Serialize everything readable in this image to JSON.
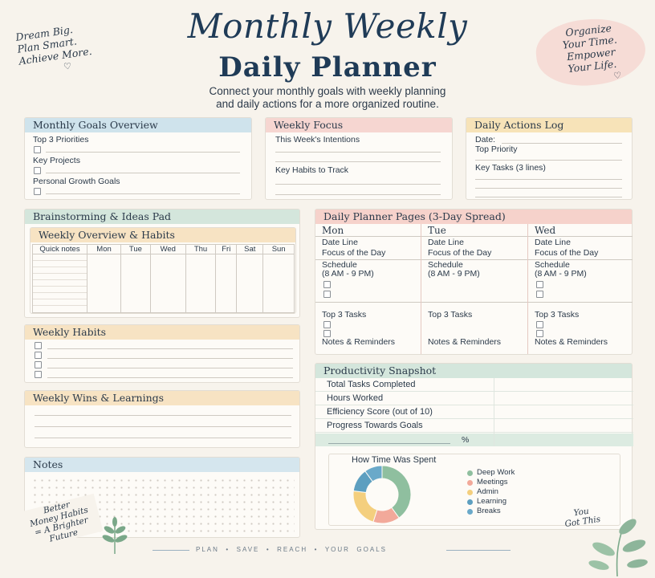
{
  "header": {
    "title_line1": "Monthly Weekly",
    "title_line2": "Daily Planner",
    "subtitle_line1": "Connect your monthly goals with weekly planning",
    "subtitle_line2": "and daily actions for a more organized routine."
  },
  "corner_left": {
    "line1": "Dream Big.",
    "line2": "Plan Smart.",
    "line3": "Achieve More."
  },
  "corner_right": {
    "line1": "Organize",
    "line2": "Your Time.",
    "line3": "Empower",
    "line4": "Your Life."
  },
  "monthly_goals": {
    "title": "Monthly Goals Overview",
    "top3": "Top 3 Priorities",
    "key_projects": "Key Projects",
    "personal_growth": "Personal Growth Goals",
    "color": "#cfe3ec"
  },
  "weekly_focus": {
    "title": "Weekly Focus",
    "intentions": "This Week's Intentions",
    "key_habits": "Key Habits to Track",
    "color": "#f6d6d1"
  },
  "daily_log": {
    "title": "Daily Actions Log",
    "date": "Date:",
    "top_priority": "Top Priority",
    "key_tasks": "Key Tasks (3 lines)",
    "color": "#f7e3b8"
  },
  "brainstorm": {
    "title": "Brainstorming & Ideas Pad",
    "color": "#d4e6dc"
  },
  "weekly_overview": {
    "title": "Weekly Overview & Habits",
    "quick_notes": "Quick notes",
    "days": [
      "Mon",
      "Tue",
      "Wed",
      "Thu",
      "Fri",
      "Sat",
      "Sun"
    ],
    "color": "#f7e3c3"
  },
  "weekly_habits": {
    "title": "Weekly Habits",
    "color": "#f7e3c3"
  },
  "weekly_wins": {
    "title": "Weekly Wins & Learnings",
    "color": "#f7e3c3"
  },
  "notes": {
    "title": "Notes",
    "color": "#d5e6ee",
    "doodle_line1": "Better",
    "doodle_line2": "Money Habits",
    "doodle_line3": "= A Brighter",
    "doodle_line4": "Future"
  },
  "daily_pages": {
    "title": "Daily Planner Pages (3-Day Spread)",
    "color": "#f6d2cb",
    "days": [
      {
        "name": "Mon",
        "date_line": "Date Line",
        "focus": "Focus of the Day",
        "schedule": "Schedule",
        "hours": "(8 AM - 9 PM)",
        "top3": "Top 3 Tasks",
        "notes": "Notes & Reminders"
      },
      {
        "name": "Tue",
        "date_line": "Date Line",
        "focus": "Focus of the Day",
        "schedule": "Schedule",
        "hours": "(8 AM - 9 PM)",
        "top3": "Top 3 Tasks",
        "notes": "Notes & Reminders"
      },
      {
        "name": "Wed",
        "date_line": "Date Line",
        "focus": "Focus of the Day",
        "schedule": "Schedule",
        "hours": "(8 AM - 9 PM)",
        "top3": "Top 3 Tasks",
        "notes": "Notes & Reminders"
      }
    ]
  },
  "productivity": {
    "title": "Productivity Snapshot",
    "color": "#d4e6dc",
    "rows": [
      "Total Tasks Completed",
      "Hours Worked",
      "Efficiency Score (out of 10)",
      "Progress Towards Goals"
    ],
    "percent_sign": "%",
    "chart_title": "How Time Was Spent"
  },
  "chart_data": {
    "type": "pie",
    "title": "How Time Was Spent",
    "categories": [
      "Deep Work",
      "Meetings",
      "Admin",
      "Learning",
      "Breaks"
    ],
    "values": [
      40,
      15,
      22,
      13,
      10
    ],
    "colors": [
      "#8fbf9f",
      "#f2a99a",
      "#f4cf7e",
      "#5d9fc0",
      "#6aa9c9"
    ]
  },
  "footer": {
    "words": [
      "PLAN",
      "SAVE",
      "REACH",
      "YOUR",
      "GOALS"
    ],
    "sep": "•",
    "you_got_this_line1": "You",
    "you_got_this_line2": "Got This"
  }
}
